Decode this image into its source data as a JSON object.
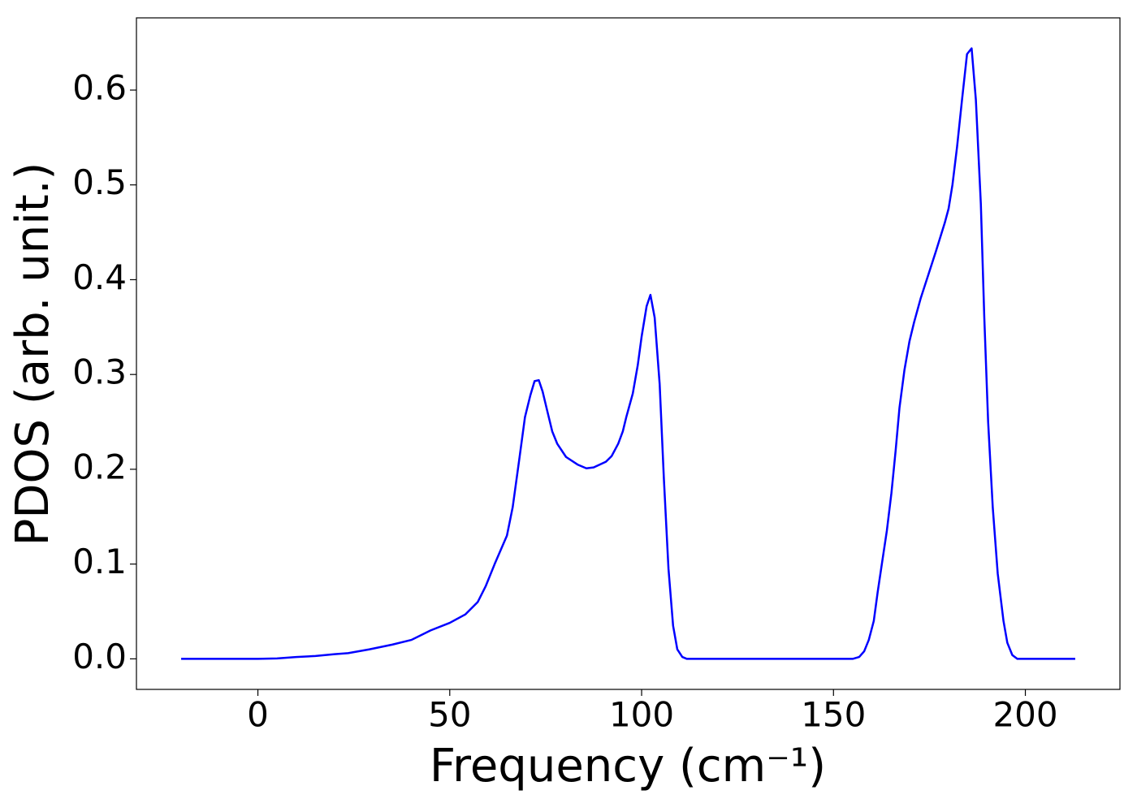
{
  "chart_data": {
    "type": "line",
    "x_label": "Frequency (cm⁻¹)",
    "y_label": "PDOS (arb. unit.)",
    "x": [
      -20,
      0,
      5,
      10,
      15,
      20,
      23.5,
      29,
      35,
      40,
      45,
      50,
      54.1,
      57.3,
      59.4,
      61.7,
      64.9,
      66.4,
      68.1,
      69.6,
      71,
      72.1,
      73.2,
      74.2,
      75.5,
      76.7,
      78,
      80.3,
      83.3,
      85.6,
      87.5,
      90.7,
      92.2,
      93.9,
      95.1,
      96,
      97.7,
      99,
      100,
      101.3,
      102.3,
      103.4,
      104.7,
      105.8,
      107,
      108.2,
      109.3,
      110.6,
      111.8,
      155,
      156.7,
      158,
      159.2,
      160.5,
      161.5,
      162.6,
      163.9,
      165.1,
      166.2,
      167.2,
      168.5,
      169.8,
      171,
      172.7,
      174.7,
      176.7,
      179,
      180,
      181,
      182.2,
      183.5,
      184.8,
      186,
      187.1,
      188.4,
      189.3,
      190.3,
      191.5,
      192.8,
      194.3,
      195.3,
      196.6,
      197.9,
      213
    ],
    "series": [
      {
        "color": "#0000ff",
        "values": [
          0,
          0,
          0.0005,
          0.002,
          0.003,
          0.005,
          0.006,
          0.01,
          0.015,
          0.02,
          0.03,
          0.038,
          0.047,
          0.06,
          0.077,
          0.1,
          0.13,
          0.16,
          0.21,
          0.255,
          0.278,
          0.293,
          0.294,
          0.282,
          0.26,
          0.24,
          0.227,
          0.213,
          0.205,
          0.201,
          0.202,
          0.208,
          0.214,
          0.227,
          0.24,
          0.255,
          0.28,
          0.31,
          0.34,
          0.372,
          0.384,
          0.36,
          0.29,
          0.19,
          0.095,
          0.035,
          0.01,
          0.002,
          0,
          0,
          0.002,
          0.008,
          0.02,
          0.04,
          0.07,
          0.1,
          0.135,
          0.175,
          0.22,
          0.265,
          0.305,
          0.335,
          0.355,
          0.38,
          0.405,
          0.43,
          0.46,
          0.475,
          0.5,
          0.54,
          0.59,
          0.638,
          0.644,
          0.59,
          0.48,
          0.36,
          0.25,
          0.16,
          0.09,
          0.04,
          0.017,
          0.004,
          0,
          0
        ]
      }
    ],
    "xlim": [
      -31.65,
      224.65
    ],
    "xticks": [
      0,
      50,
      100,
      150,
      200
    ],
    "ylim": [
      -0.0322,
      0.6762
    ],
    "yticks": [
      {
        "value": 0,
        "label": "0.0"
      },
      0.1,
      0.2,
      0.3,
      0.4,
      0.5,
      0.6
    ]
  }
}
